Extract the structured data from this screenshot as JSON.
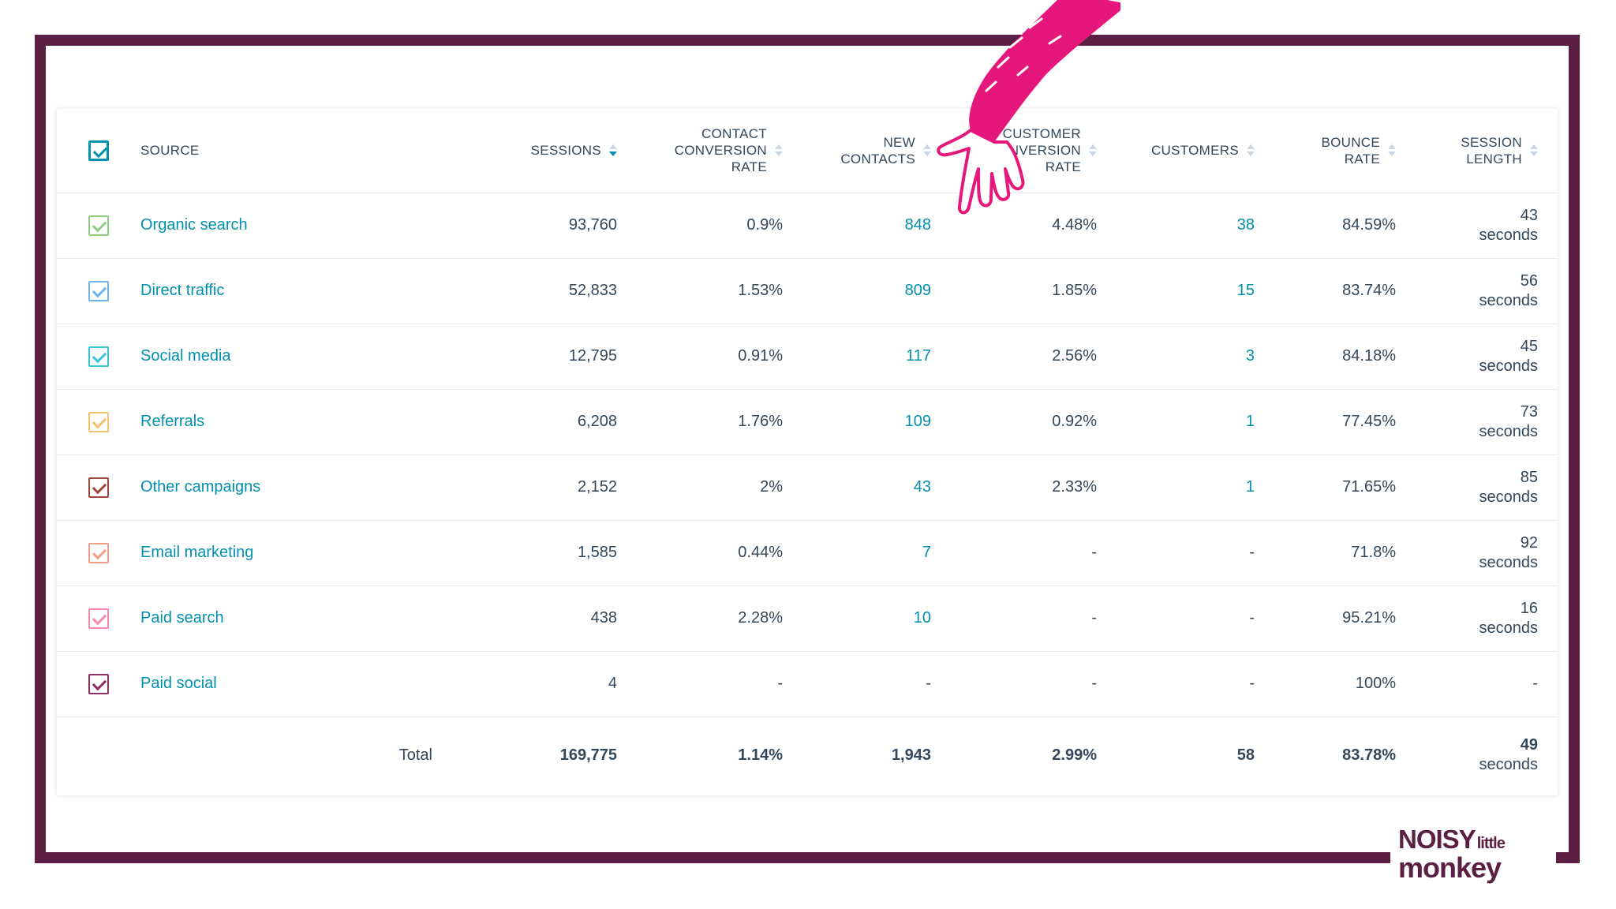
{
  "header": {
    "source": "SOURCE",
    "sessions": "SESSIONS",
    "contact_conversion_rate": [
      "CONTACT",
      "CONVERSION",
      "RATE"
    ],
    "new_contacts": [
      "NEW",
      "CONTACTS"
    ],
    "customer_conversion_rate": [
      "CUSTOMER",
      "CONVERSION",
      "RATE"
    ],
    "customers": "CUSTOMERS",
    "bounce_rate": [
      "BOUNCE",
      "RATE"
    ],
    "session_length": [
      "SESSION",
      "LENGTH"
    ]
  },
  "rows": [
    {
      "source": "Organic search",
      "sessions": "93,760",
      "contact_rate": "0.9%",
      "new_contacts": "848",
      "customer_rate": "4.48%",
      "customers": "38",
      "bounce": "84.59%",
      "length_value": "43",
      "length_unit": "seconds",
      "check_color": "#8fce7e"
    },
    {
      "source": "Direct traffic",
      "sessions": "52,833",
      "contact_rate": "1.53%",
      "new_contacts": "809",
      "customer_rate": "1.85%",
      "customers": "15",
      "bounce": "83.74%",
      "length_value": "56",
      "length_unit": "seconds",
      "check_color": "#6fb3e8"
    },
    {
      "source": "Social media",
      "sessions": "12,795",
      "contact_rate": "0.91%",
      "new_contacts": "117",
      "customer_rate": "2.56%",
      "customers": "3",
      "bounce": "84.18%",
      "length_value": "45",
      "length_unit": "seconds",
      "check_color": "#36c5d6"
    },
    {
      "source": "Referrals",
      "sessions": "6,208",
      "contact_rate": "1.76%",
      "new_contacts": "109",
      "customer_rate": "0.92%",
      "customers": "1",
      "bounce": "77.45%",
      "length_value": "73",
      "length_unit": "seconds",
      "check_color": "#f5c26b"
    },
    {
      "source": "Other campaigns",
      "sessions": "2,152",
      "contact_rate": "2%",
      "new_contacts": "43",
      "customer_rate": "2.33%",
      "customers": "1",
      "bounce": "71.65%",
      "length_value": "85",
      "length_unit": "seconds",
      "check_color": "#a0453a"
    },
    {
      "source": "Email marketing",
      "sessions": "1,585",
      "contact_rate": "0.44%",
      "new_contacts": "7",
      "customer_rate": "-",
      "customers": "-",
      "bounce": "71.8%",
      "length_value": "92",
      "length_unit": "seconds",
      "check_color": "#f59f86"
    },
    {
      "source": "Paid search",
      "sessions": "438",
      "contact_rate": "2.28%",
      "new_contacts": "10",
      "customer_rate": "-",
      "customers": "-",
      "bounce": "95.21%",
      "length_value": "16",
      "length_unit": "seconds",
      "check_color": "#f48ab2"
    },
    {
      "source": "Paid social",
      "sessions": "4",
      "contact_rate": "-",
      "new_contacts": "-",
      "customer_rate": "-",
      "customers": "-",
      "bounce": "100%",
      "length_value": "-",
      "length_unit": "",
      "check_color": "#8e2e5f"
    }
  ],
  "totals": {
    "label": "Total",
    "sessions": "169,775",
    "contact_rate": "1.14%",
    "new_contacts": "1,943",
    "customer_rate": "2.99%",
    "customers": "58",
    "bounce": "83.78%",
    "length_value": "49",
    "length_unit": "seconds"
  },
  "logo": {
    "line1": "NOISY",
    "line1_small": "little",
    "line2": "monkey"
  },
  "colors": {
    "frame": "#5a1f42",
    "link": "#0091ae",
    "text": "#33475b",
    "hand": "#e6177b",
    "header_check": "#0091ae"
  },
  "icons": {
    "sort": "sort-arrows-icon",
    "checkbox": "checkbox-checked-icon",
    "hand": "pointing-hand-illustration"
  }
}
